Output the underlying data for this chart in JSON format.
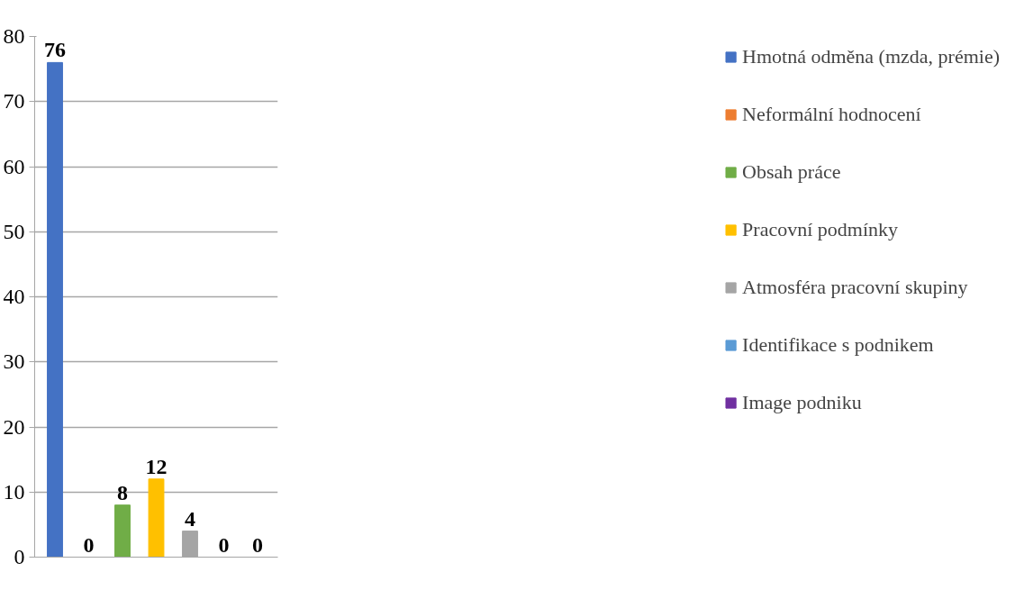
{
  "chart_data": {
    "type": "bar",
    "categories": [
      null,
      null,
      null,
      null,
      null,
      null,
      null
    ],
    "series": [
      {
        "name": "Hmotná odměna (mzda, prémie)",
        "color": "#4472c4",
        "values": [
          76,
          null,
          null,
          null,
          null,
          null,
          null
        ]
      },
      {
        "name": "Neformální hodnocení",
        "color": "#ed7d31",
        "values": [
          null,
          0,
          null,
          null,
          null,
          null,
          null
        ]
      },
      {
        "name": "Obsah práce",
        "color": "#70ad47",
        "values": [
          null,
          null,
          8,
          null,
          null,
          null,
          null
        ]
      },
      {
        "name": "Pracovní podmínky",
        "color": "#ffc000",
        "values": [
          null,
          null,
          null,
          12,
          null,
          null,
          null
        ]
      },
      {
        "name": "Atmosféra pracovní skupiny",
        "color": "#a5a5a5",
        "values": [
          null,
          null,
          null,
          null,
          4,
          null,
          null
        ]
      },
      {
        "name": "Identifikace s podnikem",
        "color": "#5b9bd5",
        "values": [
          null,
          null,
          null,
          null,
          null,
          0,
          null
        ]
      },
      {
        "name": "Image podniku",
        "color": "#7030a0",
        "values": [
          null,
          null,
          null,
          null,
          null,
          null,
          0
        ]
      }
    ],
    "ylim": [
      0,
      80
    ],
    "yticks": [
      0,
      10,
      20,
      30,
      40,
      50,
      60,
      70,
      80
    ],
    "grid": "y",
    "legend": "right",
    "data_labels": true,
    "tick_labels": "y"
  }
}
